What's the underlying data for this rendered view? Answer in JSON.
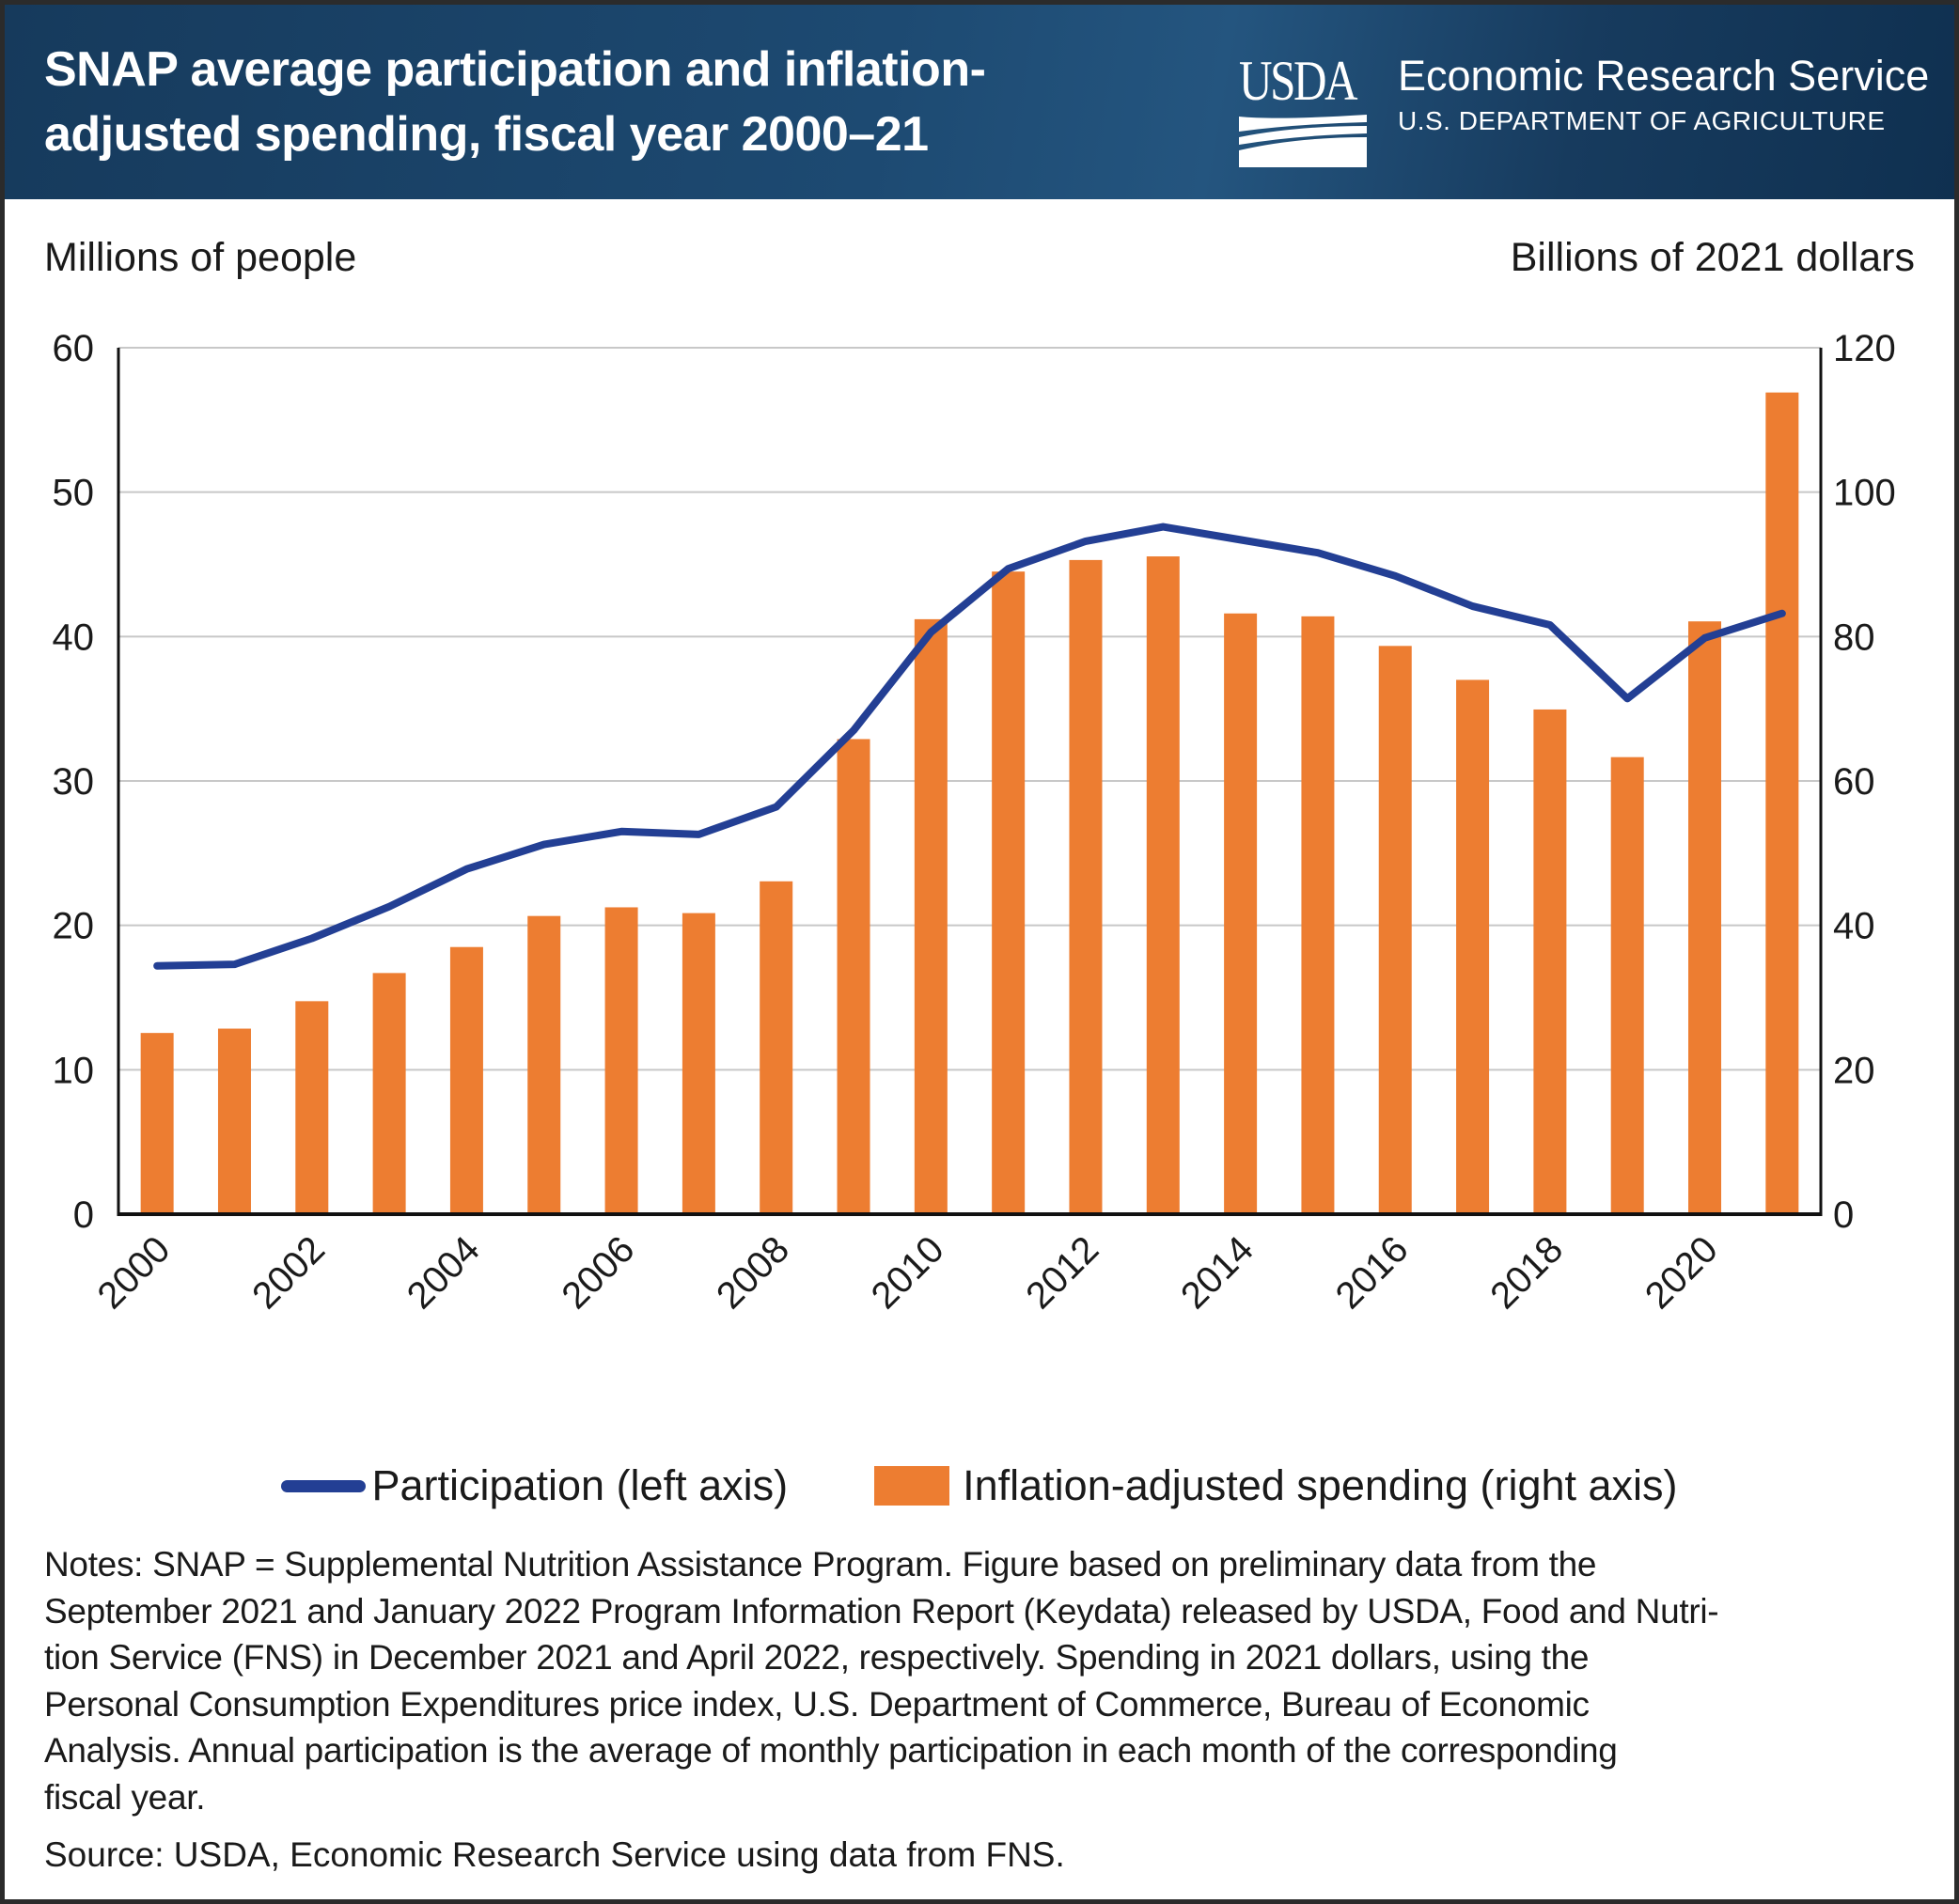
{
  "header": {
    "title_lines": [
      "SNAP average participation and inflation-",
      "adjusted spending, fiscal year 2000–21"
    ],
    "logo_text": "USDA",
    "agency": "Economic Research Service",
    "department": "U.S. DEPARTMENT OF AGRICULTURE",
    "background_color": "#1d4a72"
  },
  "chart_data": {
    "type": "bar+line",
    "title": "SNAP average participation and inflation-adjusted spending, fiscal year 2000–21",
    "ylabel_left": "Millions of people",
    "ylabel_right": "Billions of 2021 dollars",
    "ylim_left": [
      0,
      60
    ],
    "ylim_right": [
      0,
      120
    ],
    "yticks_left": [
      "0",
      "10",
      "20",
      "30",
      "40",
      "50",
      "60"
    ],
    "yticks_right": [
      "0",
      "20",
      "40",
      "60",
      "80",
      "100",
      "120"
    ],
    "x": [
      2000,
      2001,
      2002,
      2003,
      2004,
      2005,
      2006,
      2007,
      2008,
      2009,
      2010,
      2011,
      2012,
      2013,
      2014,
      2015,
      2016,
      2017,
      2018,
      2019,
      2020,
      2021
    ],
    "xtick_labels": [
      "2000",
      "2002",
      "2004",
      "2006",
      "2008",
      "2010",
      "2012",
      "2014",
      "2016",
      "2018",
      "2020"
    ],
    "grid": true,
    "legend_position": "bottom",
    "series": [
      {
        "name": "Participation (left axis)",
        "type": "line",
        "axis": "left",
        "color": "#233f94",
        "values": [
          17.2,
          17.3,
          19.1,
          21.3,
          23.9,
          25.6,
          26.5,
          26.3,
          28.2,
          33.5,
          40.3,
          44.7,
          46.6,
          47.6,
          46.7,
          45.8,
          44.2,
          42.1,
          40.8,
          35.7,
          39.9,
          41.6
        ]
      },
      {
        "name": "Inflation-adjusted spending (right axis)",
        "type": "bar",
        "axis": "right",
        "color": "#ed7d31",
        "values": [
          25.1,
          25.7,
          29.5,
          33.4,
          37.0,
          41.3,
          42.5,
          41.7,
          46.1,
          65.8,
          82.4,
          89.0,
          90.6,
          91.1,
          83.2,
          82.8,
          78.7,
          74.0,
          69.9,
          63.3,
          82.1,
          113.8
        ]
      }
    ]
  },
  "notes_lines": [
    "Notes: SNAP = Supplemental Nutrition Assistance Program. Figure based on preliminary data from the",
    "September 2021 and January 2022 Program Information Report (Keydata) released by USDA, Food and Nutri-",
    "tion Service (FNS) in December 2021 and April 2022, respectively. Spending in 2021 dollars, using the",
    "Personal Consumption Expenditures price index, U.S. Department of Commerce, Bureau of Economic",
    "Analysis. Annual participation is the average of monthly participation in each month of the corresponding",
    "fiscal year."
  ],
  "source": "Source: USDA, Economic Research Service using data from FNS."
}
